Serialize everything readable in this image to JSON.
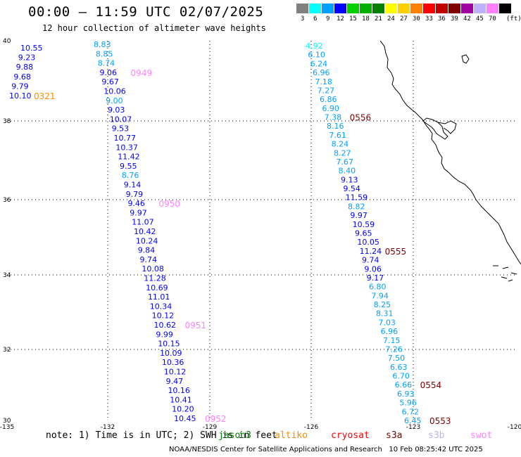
{
  "header": {
    "title": "00:00 — 11:59 UTC 02/07/2025",
    "subtitle": "12 hour collection of altimeter wave heights"
  },
  "color_scale": {
    "unit_label": "(ft)",
    "bins": [
      {
        "label": "3",
        "color": "#808080"
      },
      {
        "label": "6",
        "color": "#00ffff"
      },
      {
        "label": "9",
        "color": "#00a0ff"
      },
      {
        "label": "12",
        "color": "#0000ff"
      },
      {
        "label": "15",
        "color": "#00d000"
      },
      {
        "label": "18",
        "color": "#00b000"
      },
      {
        "label": "21",
        "color": "#008000"
      },
      {
        "label": "24",
        "color": "#ffff00"
      },
      {
        "label": "27",
        "color": "#ffd000"
      },
      {
        "label": "30",
        "color": "#ff8000"
      },
      {
        "label": "33",
        "color": "#ff0000"
      },
      {
        "label": "36",
        "color": "#c00000"
      },
      {
        "label": "39",
        "color": "#800000"
      },
      {
        "label": "42",
        "color": "#a000a0"
      },
      {
        "label": "45",
        "color": "#c0b0ff"
      },
      {
        "label": "70",
        "color": "#ff80ff"
      },
      {
        "label": "",
        "color": "#000000"
      }
    ]
  },
  "axes": {
    "lon_labels": [
      "-135",
      "-132",
      "-129",
      "-126",
      "-123",
      "-120"
    ],
    "lat_labels": [
      "30",
      "32",
      "34",
      "36",
      "38",
      "40"
    ]
  },
  "tracks": [
    {
      "values": [
        {
          "v": "10.55",
          "c": "#0000ff"
        },
        {
          "v": "9.23",
          "c": "#0000ff"
        },
        {
          "v": "9.88",
          "c": "#0000ff"
        },
        {
          "v": "9.68",
          "c": "#0000ff"
        },
        {
          "v": "9.79",
          "c": "#0000ff"
        },
        {
          "v": "10.10",
          "c": "#0000ff"
        }
      ],
      "time": "0321",
      "time_color": "#ff8c00"
    },
    {
      "values": [
        {
          "v": "8.83",
          "c": "#00a0ff"
        },
        {
          "v": "8.85",
          "c": "#00a0ff"
        },
        {
          "v": "8.74",
          "c": "#00a0ff"
        },
        {
          "v": "9.06",
          "c": "#0000ff"
        },
        {
          "v": "9.67",
          "c": "#0000ff"
        },
        {
          "v": "10.06",
          "c": "#0000ff"
        },
        {
          "v": "9.00",
          "c": "#00a0ff"
        },
        {
          "v": "9.03",
          "c": "#0000ff"
        },
        {
          "v": "10.07",
          "c": "#0000ff"
        },
        {
          "v": "9.53",
          "c": "#0000ff"
        },
        {
          "v": "10.77",
          "c": "#0000ff"
        },
        {
          "v": "10.37",
          "c": "#0000ff"
        },
        {
          "v": "11.42",
          "c": "#0000ff"
        },
        {
          "v": "9.55",
          "c": "#0000ff"
        },
        {
          "v": "8.76",
          "c": "#00a0ff"
        },
        {
          "v": "9.14",
          "c": "#0000ff"
        },
        {
          "v": "9.79",
          "c": "#0000ff"
        },
        {
          "v": "9.46",
          "c": "#0000ff"
        },
        {
          "v": "9.97",
          "c": "#0000ff"
        },
        {
          "v": "11.07",
          "c": "#0000ff"
        },
        {
          "v": "10.42",
          "c": "#0000ff"
        },
        {
          "v": "10.24",
          "c": "#0000ff"
        },
        {
          "v": "9.84",
          "c": "#0000ff"
        },
        {
          "v": "9.74",
          "c": "#0000ff"
        },
        {
          "v": "10.08",
          "c": "#0000ff"
        },
        {
          "v": "11.28",
          "c": "#0000ff"
        },
        {
          "v": "10.69",
          "c": "#0000ff"
        },
        {
          "v": "11.01",
          "c": "#0000ff"
        },
        {
          "v": "10.34",
          "c": "#0000ff"
        },
        {
          "v": "10.12",
          "c": "#0000ff"
        },
        {
          "v": "10.62",
          "c": "#0000ff"
        },
        {
          "v": "9.99",
          "c": "#0000ff"
        },
        {
          "v": "10.15",
          "c": "#0000ff"
        },
        {
          "v": "10.09",
          "c": "#0000ff"
        },
        {
          "v": "10.36",
          "c": "#0000ff"
        },
        {
          "v": "10.12",
          "c": "#0000ff"
        },
        {
          "v": "9.47",
          "c": "#0000ff"
        },
        {
          "v": "10.16",
          "c": "#0000ff"
        },
        {
          "v": "10.41",
          "c": "#0000ff"
        },
        {
          "v": "10.20",
          "c": "#0000ff"
        },
        {
          "v": "10.45",
          "c": "#0000ff"
        }
      ],
      "times": [
        {
          "label": "0949",
          "color": "#ff80ff"
        },
        {
          "label": "0950",
          "color": "#ff80ff"
        },
        {
          "label": "0951",
          "color": "#ff80ff"
        },
        {
          "label": "0952",
          "color": "#ff80ff"
        }
      ]
    },
    {
      "values": [
        {
          "v": "4.92",
          "c": "#00ffff"
        },
        {
          "v": "6.10",
          "c": "#00a0ff"
        },
        {
          "v": "6.24",
          "c": "#00a0ff"
        },
        {
          "v": "6.96",
          "c": "#00a0ff"
        },
        {
          "v": "7.18",
          "c": "#00a0ff"
        },
        {
          "v": "7.27",
          "c": "#00a0ff"
        },
        {
          "v": "6.86",
          "c": "#00a0ff"
        },
        {
          "v": "6.90",
          "c": "#00a0ff"
        },
        {
          "v": "7.38",
          "c": "#00a0ff"
        },
        {
          "v": "8.16",
          "c": "#00a0ff"
        },
        {
          "v": "7.61",
          "c": "#00a0ff"
        },
        {
          "v": "8.24",
          "c": "#00a0ff"
        },
        {
          "v": "8.27",
          "c": "#00a0ff"
        },
        {
          "v": "7.67",
          "c": "#00a0ff"
        },
        {
          "v": "8.40",
          "c": "#00a0ff"
        },
        {
          "v": "9.13",
          "c": "#0000ff"
        },
        {
          "v": "9.54",
          "c": "#0000ff"
        },
        {
          "v": "11.59",
          "c": "#0000ff"
        },
        {
          "v": "8.82",
          "c": "#00a0ff"
        },
        {
          "v": "9.97",
          "c": "#0000ff"
        },
        {
          "v": "10.59",
          "c": "#0000ff"
        },
        {
          "v": "9.65",
          "c": "#0000ff"
        },
        {
          "v": "10.05",
          "c": "#0000ff"
        },
        {
          "v": "11.24",
          "c": "#0000ff"
        },
        {
          "v": "9.74",
          "c": "#0000ff"
        },
        {
          "v": "9.06",
          "c": "#0000ff"
        },
        {
          "v": "9.17",
          "c": "#0000ff"
        },
        {
          "v": "6.80",
          "c": "#00a0ff"
        },
        {
          "v": "7.94",
          "c": "#00a0ff"
        },
        {
          "v": "8.25",
          "c": "#00a0ff"
        },
        {
          "v": "8.31",
          "c": "#00a0ff"
        },
        {
          "v": "7.03",
          "c": "#00a0ff"
        },
        {
          "v": "6.96",
          "c": "#00a0ff"
        },
        {
          "v": "7.15",
          "c": "#00a0ff"
        },
        {
          "v": "7.26",
          "c": "#00a0ff"
        },
        {
          "v": "7.50",
          "c": "#00a0ff"
        },
        {
          "v": "6.63",
          "c": "#00a0ff"
        },
        {
          "v": "6.70",
          "c": "#00a0ff"
        },
        {
          "v": "6.66",
          "c": "#00a0ff"
        },
        {
          "v": "6.93",
          "c": "#00a0ff"
        },
        {
          "v": "5.96",
          "c": "#00a0ff"
        },
        {
          "v": "6.72",
          "c": "#00a0ff"
        },
        {
          "v": "6.45",
          "c": "#00a0ff"
        }
      ],
      "times": [
        {
          "label": "0556",
          "color": "#800000"
        },
        {
          "label": "0555",
          "color": "#800000"
        },
        {
          "label": "0554",
          "color": "#800000"
        },
        {
          "label": "0553",
          "color": "#800000"
        }
      ]
    }
  ],
  "footer": {
    "note": "note: 1) Time is in UTC; 2) SWH is in feet",
    "satellites": [
      {
        "name": "jason3",
        "color": "#008000"
      },
      {
        "name": "altiko",
        "color": "#ff8c00"
      },
      {
        "name": "cryosat",
        "color": "#ff0000"
      },
      {
        "name": "s3a",
        "color": "#800000"
      },
      {
        "name": "s3b",
        "color": "#c0b0ff"
      },
      {
        "name": "swot",
        "color": "#ff80ff"
      }
    ],
    "credit": "NOAA/NESDIS Center for Satellite Applications and Research",
    "timestamp": "10 Feb 08:25:42 UTC 2025"
  }
}
